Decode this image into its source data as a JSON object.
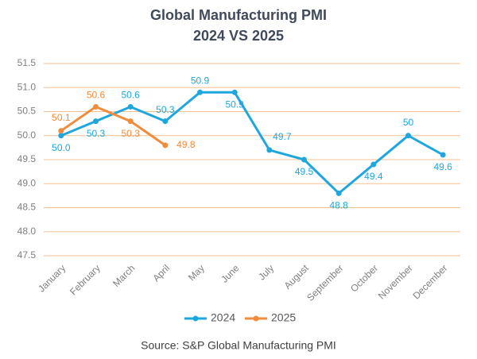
{
  "chart_data": {
    "type": "line",
    "title": "Global Manufacturing PMI",
    "subtitle": "2024 VS 2025",
    "categories": [
      "January",
      "February",
      "March",
      "April",
      "May",
      "June",
      "July",
      "August",
      "September",
      "October",
      "November",
      "December"
    ],
    "series": [
      {
        "name": "2024",
        "color": "#1fa7dd",
        "values": [
          50.0,
          50.3,
          50.6,
          50.3,
          50.9,
          50.9,
          49.7,
          49.5,
          48.8,
          49.4,
          50,
          49.6
        ],
        "value_labels": [
          "50.0",
          "50.3",
          "50.6",
          "50.3",
          "50.9",
          "50.9",
          "49.7",
          "49.5",
          "48.8",
          "49.4",
          "50",
          "49.6"
        ]
      },
      {
        "name": "2025",
        "color": "#f08c3c",
        "values": [
          50.1,
          50.6,
          50.3,
          49.8,
          null,
          null,
          null,
          null,
          null,
          null,
          null,
          null
        ],
        "value_labels": [
          "50.1",
          "50.6",
          "50.3",
          "49.8",
          null,
          null,
          null,
          null,
          null,
          null,
          null,
          null
        ]
      }
    ],
    "ylim": [
      47.5,
      51.5
    ],
    "yticks": [
      47.5,
      {
        "value": 48,
        "label": "48.0"
      },
      48.5,
      {
        "value": 49,
        "label": "49.0"
      },
      49.5,
      {
        "value": 50,
        "label": "50.0"
      },
      50.5,
      {
        "value": 51,
        "label": "51.0"
      },
      51.5
    ],
    "grid": true,
    "legend": "bottom",
    "source": "Source: S&P Global Manufacturing PMI"
  }
}
